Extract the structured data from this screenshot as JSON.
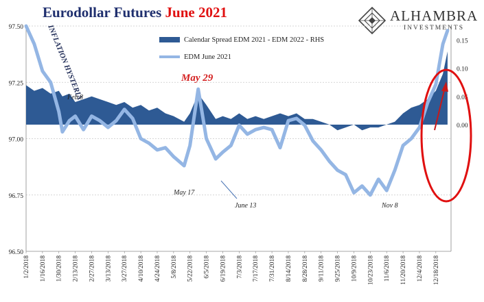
{
  "title": {
    "part1": "Eurodollar Futures",
    "part2": "June 2021"
  },
  "brand": {
    "name": "ALHAMBRA",
    "sub": "INVESTMENTS",
    "logo_icon": "diamond-logo-icon"
  },
  "colors": {
    "area": "#2e5a94",
    "line": "#94b6e4",
    "title_main": "#1f2f6e",
    "title_accent": "#e01010",
    "annotation_red": "#d42020"
  },
  "chart_data": {
    "type": "line",
    "title": "Eurodollar Futures June 2021",
    "x_ticks": [
      "1/2/2018",
      "1/16/2018",
      "1/30/2018",
      "2/13/2018",
      "2/27/2018",
      "3/13/2018",
      "3/27/2018",
      "4/10/2018",
      "4/24/2018",
      "5/8/2018",
      "5/22/2018",
      "6/5/2018",
      "6/19/2018",
      "7/3/2018",
      "7/17/2018",
      "7/31/2018",
      "8/14/2018",
      "8/28/2018",
      "9/11/2018",
      "9/25/2018",
      "10/9/2018",
      "10/23/2018",
      "11/6/2018",
      "11/20/2018",
      "12/4/2018",
      "12/18/2018"
    ],
    "left_axis": {
      "ticks": [
        "96.50",
        "96.75",
        "97.00",
        "97.25",
        "97.50"
      ],
      "ylim": [
        96.5,
        97.5
      ]
    },
    "right_axis": {
      "ticks": [
        "0.00",
        "0.05",
        "0.10",
        "0.15"
      ],
      "ylim": [
        -0.225,
        0.175
      ]
    },
    "grid": "horizontal dashed",
    "legend_position": "top-center",
    "series": [
      {
        "name": "Calendar Spread EDM 2021 - EDM 2022 - RHS",
        "type": "area",
        "axis": "right",
        "x": [
          "2018-01-02",
          "2018-01-09",
          "2018-01-16",
          "2018-01-23",
          "2018-01-30",
          "2018-02-02",
          "2018-02-08",
          "2018-02-13",
          "2018-02-20",
          "2018-02-27",
          "2018-03-06",
          "2018-03-13",
          "2018-03-20",
          "2018-03-27",
          "2018-04-03",
          "2018-04-10",
          "2018-04-17",
          "2018-04-24",
          "2018-05-01",
          "2018-05-08",
          "2018-05-17",
          "2018-05-22",
          "2018-05-29",
          "2018-06-05",
          "2018-06-13",
          "2018-06-19",
          "2018-06-26",
          "2018-07-03",
          "2018-07-10",
          "2018-07-17",
          "2018-07-24",
          "2018-07-31",
          "2018-08-07",
          "2018-08-14",
          "2018-08-21",
          "2018-08-28",
          "2018-09-04",
          "2018-09-11",
          "2018-09-18",
          "2018-09-25",
          "2018-10-02",
          "2018-10-09",
          "2018-10-16",
          "2018-10-23",
          "2018-10-30",
          "2018-11-06",
          "2018-11-13",
          "2018-11-20",
          "2018-11-27",
          "2018-12-04",
          "2018-12-11",
          "2018-12-18",
          "2018-12-24",
          "2018-12-28"
        ],
        "values": [
          0.07,
          0.06,
          0.065,
          0.055,
          0.06,
          0.05,
          0.055,
          0.04,
          0.045,
          0.05,
          0.045,
          0.04,
          0.035,
          0.04,
          0.03,
          0.035,
          0.025,
          0.03,
          0.02,
          0.015,
          0.005,
          0.02,
          0.055,
          0.035,
          0.01,
          0.015,
          0.01,
          0.02,
          0.01,
          0.015,
          0.01,
          0.015,
          0.02,
          0.015,
          0.02,
          0.01,
          0.01,
          0.005,
          0.0,
          -0.01,
          -0.005,
          0.0,
          -0.01,
          -0.005,
          -0.005,
          0.0,
          0.005,
          0.02,
          0.03,
          0.035,
          0.045,
          0.06,
          0.09,
          0.13
        ]
      },
      {
        "name": "EDM June 2021",
        "type": "line",
        "axis": "left",
        "x": [
          "2018-01-02",
          "2018-01-09",
          "2018-01-16",
          "2018-01-23",
          "2018-01-30",
          "2018-02-02",
          "2018-02-08",
          "2018-02-13",
          "2018-02-20",
          "2018-02-27",
          "2018-03-06",
          "2018-03-13",
          "2018-03-20",
          "2018-03-27",
          "2018-04-03",
          "2018-04-10",
          "2018-04-17",
          "2018-04-24",
          "2018-05-01",
          "2018-05-08",
          "2018-05-17",
          "2018-05-22",
          "2018-05-29",
          "2018-06-05",
          "2018-06-13",
          "2018-06-19",
          "2018-06-26",
          "2018-07-03",
          "2018-07-10",
          "2018-07-17",
          "2018-07-24",
          "2018-07-31",
          "2018-08-07",
          "2018-08-14",
          "2018-08-21",
          "2018-08-28",
          "2018-09-04",
          "2018-09-11",
          "2018-09-18",
          "2018-09-25",
          "2018-10-02",
          "2018-10-09",
          "2018-10-16",
          "2018-10-23",
          "2018-10-30",
          "2018-11-06",
          "2018-11-13",
          "2018-11-20",
          "2018-11-27",
          "2018-12-04",
          "2018-12-11",
          "2018-12-18",
          "2018-12-24",
          "2018-12-28"
        ],
        "values": [
          97.5,
          97.42,
          97.3,
          97.25,
          97.12,
          97.03,
          97.08,
          97.1,
          97.04,
          97.1,
          97.08,
          97.05,
          97.08,
          97.13,
          97.09,
          97.0,
          96.98,
          96.95,
          96.96,
          96.92,
          96.88,
          96.97,
          97.22,
          97.0,
          96.91,
          96.94,
          96.97,
          97.06,
          97.02,
          97.04,
          97.05,
          97.04,
          96.96,
          97.08,
          97.09,
          97.06,
          96.99,
          96.95,
          96.9,
          96.86,
          96.84,
          96.76,
          96.79,
          96.75,
          96.82,
          96.77,
          96.86,
          96.97,
          97.0,
          97.05,
          97.16,
          97.24,
          97.42,
          97.48
        ]
      }
    ],
    "annotations": [
      "INFLATION HYSTERIA",
      "May 29",
      "Feb 8",
      "Feb 2",
      "May 17",
      "June 13",
      "Nov 8"
    ]
  }
}
